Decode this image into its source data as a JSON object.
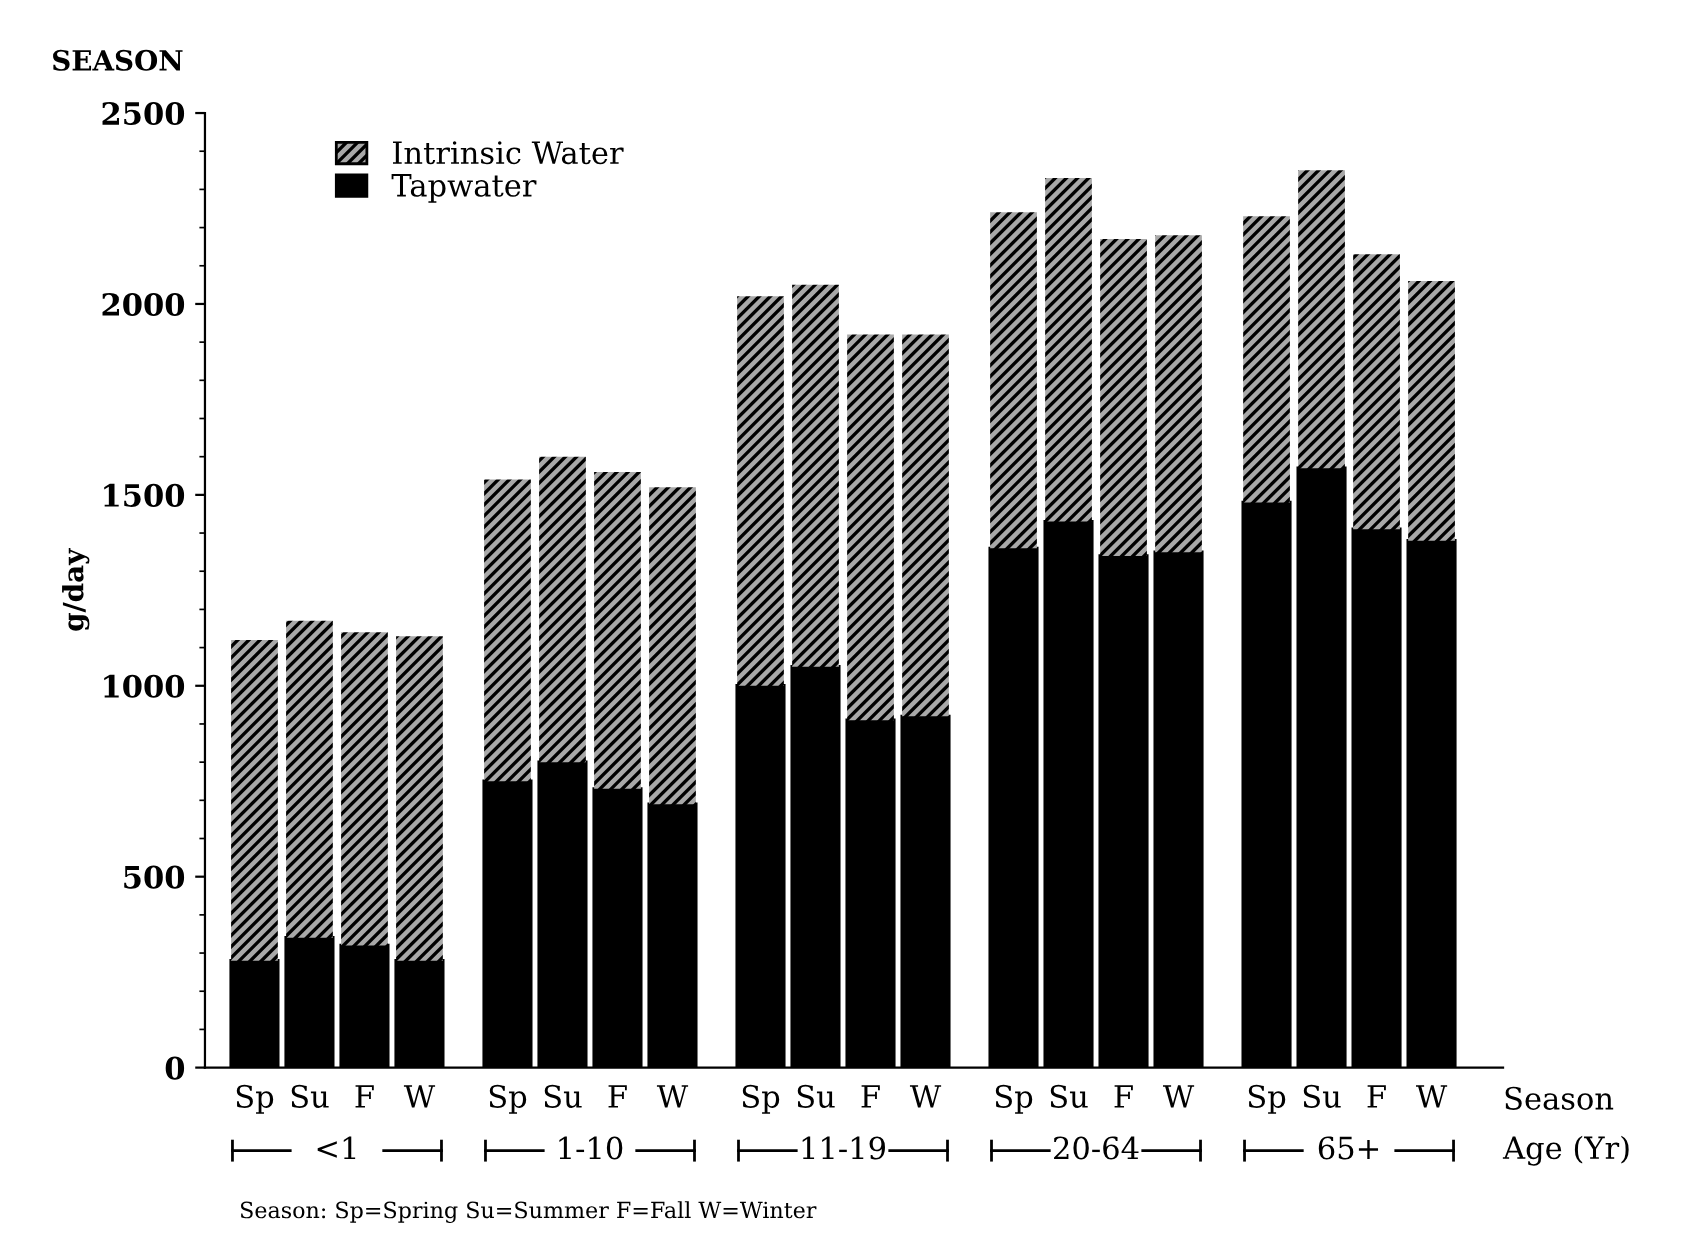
{
  "chart_data": {
    "type": "bar",
    "title": "SEASON",
    "ylabel": "g/day",
    "xlabel": "Season",
    "categories": [
      "Sp",
      "Su",
      "F",
      "W",
      "Sp",
      "Su",
      "F",
      "W",
      "Sp",
      "Su",
      "F",
      "W",
      "Sp",
      "Su",
      "F",
      "W",
      "Sp",
      "Su",
      "F",
      "W"
    ],
    "stacked": true,
    "series": [
      {
        "name": "Tapwater",
        "color": "#000000",
        "values": [
          280,
          340,
          320,
          280,
          750,
          800,
          730,
          690,
          1000,
          1050,
          910,
          920,
          1360,
          1430,
          1340,
          1350,
          1480,
          1570,
          1410,
          1380
        ]
      },
      {
        "name": "Intrinsic Water",
        "color": "#a8a8a8",
        "values": [
          840,
          830,
          820,
          850,
          790,
          800,
          830,
          830,
          1020,
          1000,
          1010,
          1000,
          880,
          900,
          830,
          830,
          750,
          780,
          720,
          680
        ]
      }
    ],
    "ylim": [
      0,
      2500
    ],
    "yticks": [
      0,
      500,
      1000,
      1500,
      2000,
      2500
    ],
    "legend": "top left",
    "grid": false,
    "annotations": [
      "<1",
      "1-10",
      "11-19",
      "20-64",
      "65+",
      "Age (Yr)",
      "Season: Sp=Spring Su=Summer F=Fall W=Winter"
    ]
  }
}
